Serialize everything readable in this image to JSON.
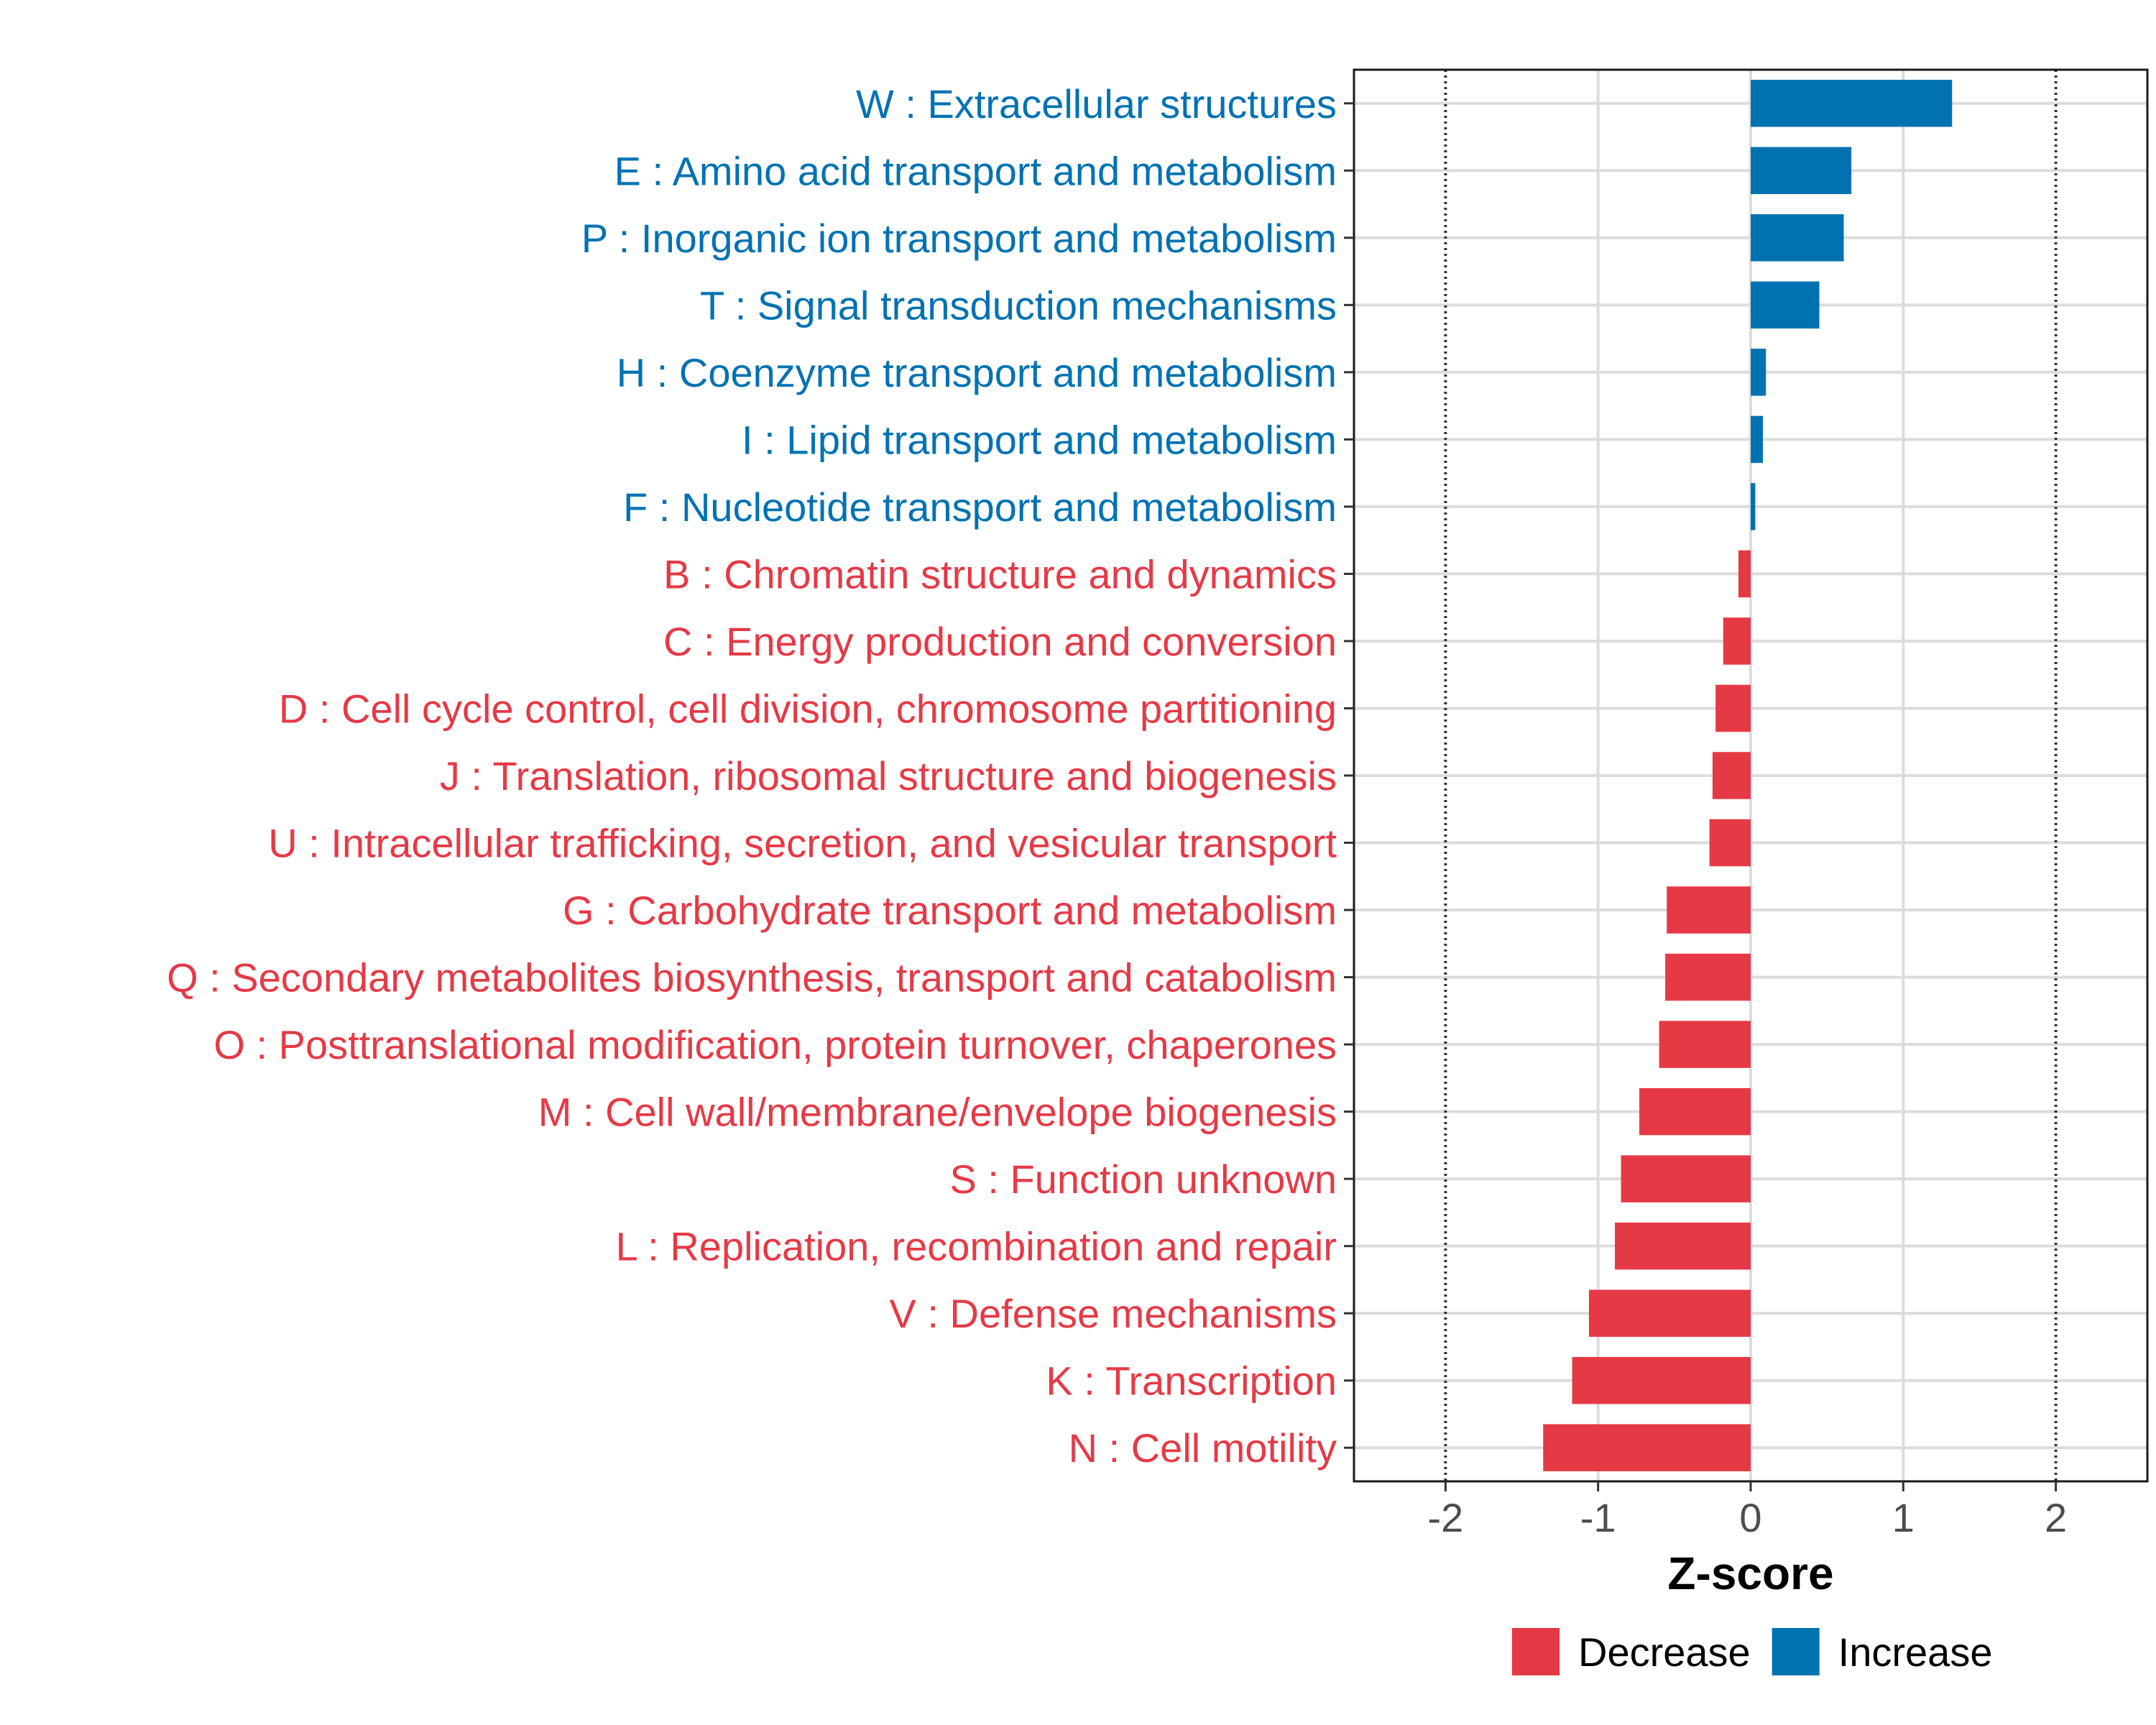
{
  "chart_data": {
    "type": "bar",
    "orientation": "horizontal",
    "title": "",
    "xlabel": "Z-score",
    "ylabel": "",
    "xlim": [
      -2.6,
      2.6
    ],
    "xticks": [
      -2,
      -1,
      0,
      1,
      2
    ],
    "xtick_labels": [
      "-2",
      "-1",
      "0",
      "1",
      "2"
    ],
    "reference_lines": [
      -2,
      2
    ],
    "grid": true,
    "colors": {
      "Increase": "#0072b2",
      "Decrease": "#e63946"
    },
    "legend": {
      "position": "bottom",
      "entries": [
        {
          "label": "Decrease",
          "color": "#e63946"
        },
        {
          "label": "Increase",
          "color": "#0072b2"
        }
      ]
    },
    "bars": [
      {
        "label": "W : Extracellular structures",
        "value": 1.32,
        "direction": "Increase"
      },
      {
        "label": "E : Amino acid transport and metabolism",
        "value": 0.66,
        "direction": "Increase"
      },
      {
        "label": "P : Inorganic ion transport and metabolism",
        "value": 0.61,
        "direction": "Increase"
      },
      {
        "label": "T : Signal transduction mechanisms",
        "value": 0.45,
        "direction": "Increase"
      },
      {
        "label": "H : Coenzyme transport and metabolism",
        "value": 0.1,
        "direction": "Increase"
      },
      {
        "label": "I : Lipid transport and metabolism",
        "value": 0.08,
        "direction": "Increase"
      },
      {
        "label": "F : Nucleotide transport and metabolism",
        "value": 0.03,
        "direction": "Increase"
      },
      {
        "label": "B : Chromatin structure and dynamics",
        "value": -0.08,
        "direction": "Decrease"
      },
      {
        "label": "C : Energy production and conversion",
        "value": -0.18,
        "direction": "Decrease"
      },
      {
        "label": "D : Cell cycle control, cell division, chromosome partitioning",
        "value": -0.23,
        "direction": "Decrease"
      },
      {
        "label": "J : Translation, ribosomal structure and biogenesis",
        "value": -0.25,
        "direction": "Decrease"
      },
      {
        "label": "U : Intracellular trafficking, secretion, and vesicular transport",
        "value": -0.27,
        "direction": "Decrease"
      },
      {
        "label": "G : Carbohydrate transport and metabolism",
        "value": -0.55,
        "direction": "Decrease"
      },
      {
        "label": "Q : Secondary metabolites biosynthesis, transport and catabolism",
        "value": -0.56,
        "direction": "Decrease"
      },
      {
        "label": "O : Posttranslational modification, protein turnover, chaperones",
        "value": -0.6,
        "direction": "Decrease"
      },
      {
        "label": "M : Cell wall/membrane/envelope biogenesis",
        "value": -0.73,
        "direction": "Decrease"
      },
      {
        "label": "S : Function unknown",
        "value": -0.85,
        "direction": "Decrease"
      },
      {
        "label": "L : Replication, recombination and repair",
        "value": -0.89,
        "direction": "Decrease"
      },
      {
        "label": "V : Defense mechanisms",
        "value": -1.06,
        "direction": "Decrease"
      },
      {
        "label": "K : Transcription",
        "value": -1.17,
        "direction": "Decrease"
      },
      {
        "label": "N : Cell motility",
        "value": -1.36,
        "direction": "Decrease"
      }
    ]
  }
}
